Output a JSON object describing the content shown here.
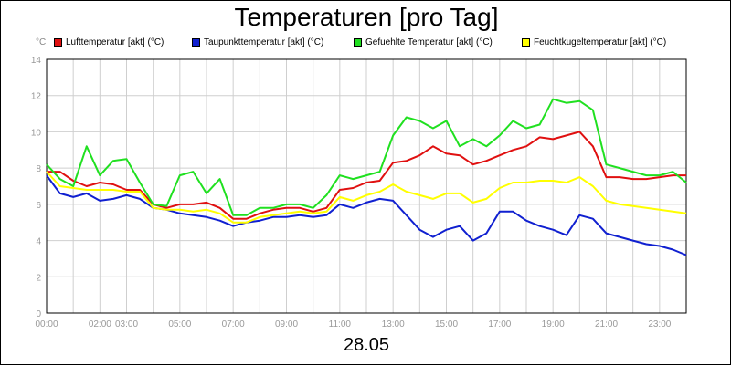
{
  "title": "Temperaturen [pro Tag]",
  "date": "28.05",
  "y_unit": "°C",
  "legend": [
    {
      "label": "Lufttemperatur [akt] (°C)",
      "color": "#e01010"
    },
    {
      "label": "Taupunkttemperatur [akt] (°C)",
      "color": "#1020d0"
    },
    {
      "label": "Gefuehlte Temperatur [akt] (°C)",
      "color": "#20e020"
    },
    {
      "label": "Feuchtkugeltemperatur [akt] (°C)",
      "color": "#ffff00"
    }
  ],
  "chart_data": {
    "type": "line",
    "title": "Temperaturen [pro Tag]",
    "xlabel": "28.05",
    "ylabel": "°C",
    "xlim": [
      0,
      24
    ],
    "ylim": [
      0,
      14
    ],
    "grid": true,
    "legend_position": "top",
    "x_tick_labels": [
      "00:00",
      "02:00",
      "03:00",
      "05:00",
      "07:00",
      "09:00",
      "11:00",
      "13:00",
      "15:00",
      "17:00",
      "19:00",
      "21:00",
      "23:00"
    ],
    "x_tick_values": [
      0,
      2,
      3,
      5,
      7,
      9,
      11,
      13,
      15,
      17,
      19,
      21,
      23
    ],
    "y_tick_labels": [
      "0",
      "2",
      "4",
      "6",
      "8",
      "10",
      "12",
      "14"
    ],
    "y_tick_values": [
      0,
      2,
      4,
      6,
      8,
      10,
      12,
      14
    ],
    "x": [
      0,
      0.5,
      1,
      1.5,
      2,
      2.5,
      3,
      3.5,
      4,
      4.5,
      5,
      5.5,
      6,
      6.5,
      7,
      7.5,
      8,
      8.5,
      9,
      9.5,
      10,
      10.5,
      11,
      11.5,
      12,
      12.5,
      13,
      13.5,
      14,
      14.5,
      15,
      15.5,
      16,
      16.5,
      17,
      17.5,
      18,
      18.5,
      19,
      19.5,
      20,
      20.5,
      21,
      21.5,
      22,
      22.5,
      23,
      23.5,
      24
    ],
    "series": [
      {
        "name": "Lufttemperatur [akt] (°C)",
        "color": "#e01010",
        "values": [
          7.8,
          7.8,
          7.3,
          7.0,
          7.2,
          7.1,
          6.8,
          6.8,
          6.0,
          5.8,
          6.0,
          6.0,
          6.1,
          5.8,
          5.2,
          5.2,
          5.5,
          5.7,
          5.8,
          5.8,
          5.6,
          5.8,
          6.8,
          6.9,
          7.2,
          7.3,
          8.3,
          8.4,
          8.7,
          9.2,
          8.8,
          8.7,
          8.2,
          8.4,
          8.7,
          9.0,
          9.2,
          9.7,
          9.6,
          9.8,
          10.0,
          9.2,
          7.5,
          7.5,
          7.4,
          7.4,
          7.5,
          7.6,
          7.6
        ]
      },
      {
        "name": "Taupunkttemperatur [akt] (°C)",
        "color": "#1020d0",
        "values": [
          7.6,
          6.6,
          6.4,
          6.6,
          6.2,
          6.3,
          6.5,
          6.3,
          5.8,
          5.7,
          5.5,
          5.4,
          5.3,
          5.1,
          4.8,
          5.0,
          5.1,
          5.3,
          5.3,
          5.4,
          5.3,
          5.4,
          6.0,
          5.8,
          6.1,
          6.3,
          6.2,
          5.4,
          4.6,
          4.2,
          4.6,
          4.8,
          4.0,
          4.4,
          5.6,
          5.6,
          5.1,
          4.8,
          4.6,
          4.3,
          5.4,
          5.2,
          4.4,
          4.2,
          4.0,
          3.8,
          3.7,
          3.5,
          3.2
        ]
      },
      {
        "name": "Gefuehlte Temperatur [akt] (°C)",
        "color": "#20e020",
        "values": [
          8.2,
          7.4,
          7.0,
          9.2,
          7.6,
          8.4,
          8.5,
          7.2,
          6.0,
          5.9,
          7.6,
          7.8,
          6.6,
          7.4,
          5.4,
          5.4,
          5.8,
          5.8,
          6.0,
          6.0,
          5.8,
          6.5,
          7.6,
          7.4,
          7.6,
          7.8,
          9.8,
          10.8,
          10.6,
          10.2,
          10.6,
          9.2,
          9.6,
          9.2,
          9.8,
          10.6,
          10.2,
          10.4,
          11.8,
          11.6,
          11.7,
          11.2,
          8.2,
          8.0,
          7.8,
          7.6,
          7.6,
          7.8,
          7.2
        ]
      },
      {
        "name": "Feuchtkugeltemperatur [akt] (°C)",
        "color": "#ffff00",
        "values": [
          7.8,
          7.0,
          6.9,
          6.8,
          6.8,
          6.8,
          6.7,
          6.7,
          5.8,
          5.7,
          5.7,
          5.6,
          5.7,
          5.5,
          5.0,
          5.0,
          5.3,
          5.4,
          5.5,
          5.6,
          5.5,
          5.6,
          6.4,
          6.2,
          6.5,
          6.7,
          7.1,
          6.7,
          6.5,
          6.3,
          6.6,
          6.6,
          6.1,
          6.3,
          6.9,
          7.2,
          7.2,
          7.3,
          7.3,
          7.2,
          7.5,
          7.0,
          6.2,
          6.0,
          5.9,
          5.8,
          5.7,
          5.6,
          5.5
        ]
      }
    ]
  }
}
